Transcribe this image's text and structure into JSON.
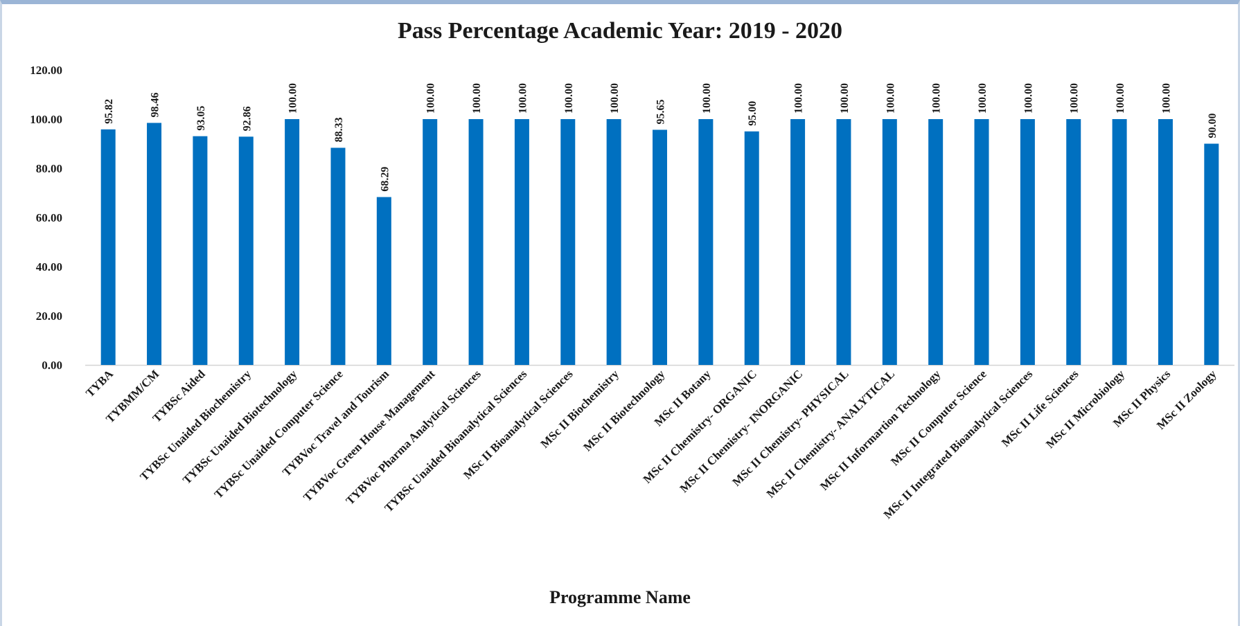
{
  "chart_data": {
    "type": "bar",
    "title": "Pass Percentage Academic Year: 2019 - 2020",
    "xlabel": "Programme Name",
    "ylabel": "",
    "ylim": [
      0,
      120
    ],
    "yticks": [
      "0.00",
      "20.00",
      "40.00",
      "60.00",
      "80.00",
      "100.00",
      "120.00"
    ],
    "grid": false,
    "legend": "none",
    "bar_color": "#0070c0",
    "categories": [
      "TYBA",
      "TYBMM/CM",
      "TYBSc Aided",
      "TYBSc Unaided Biochemistry",
      "TYBSc Unaided Biotechnology",
      "TYBSc Unaided Computer Science",
      "TYBVoc Travel and Tourism",
      "TYBVoc Green House Management",
      "TYBVoc Pharma Analytical Sciences",
      "TYBSc Unaided Bioanalytical Sciences",
      "MSc II Bioanalytical Sciences",
      "MSc II Biochemistry",
      "MSc II Biotechnology",
      "MSc II Botany",
      "MSc II Chemistry- ORGANIC",
      "MSc II Chemistry- INORGANIC",
      "MSc II Chemistry- PHYSICAL",
      "MSc II Chemistry- ANALYTICAL",
      "MSc II Informartion Technology",
      "MSc II Computer Science",
      "MSc II Integrated Bioanalytical Sciences",
      "MSc II Life Sciences",
      "MSc II Microbiology",
      "MSc II Physics",
      "MSc II Zoology"
    ],
    "values": [
      95.82,
      98.46,
      93.05,
      92.86,
      100.0,
      88.33,
      68.29,
      100.0,
      100.0,
      100.0,
      100.0,
      100.0,
      95.65,
      100.0,
      95.0,
      100.0,
      100.0,
      100.0,
      100.0,
      100.0,
      100.0,
      100.0,
      100.0,
      100.0,
      90.0
    ],
    "value_labels": [
      "95.82",
      "98.46",
      "93.05",
      "92.86",
      "100.00",
      "88.33",
      "68.29",
      "100.00",
      "100.00",
      "100.00",
      "100.00",
      "100.00",
      "95.65",
      "100.00",
      "95.00",
      "100.00",
      "100.00",
      "100.00",
      "100.00",
      "100.00",
      "100.00",
      "100.00",
      "100.00",
      "100.00",
      "90.00"
    ]
  }
}
